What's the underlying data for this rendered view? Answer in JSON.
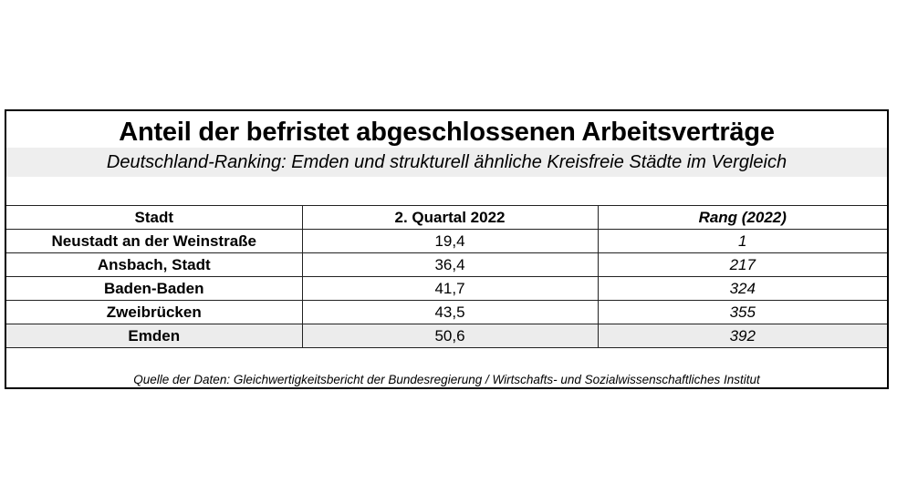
{
  "title": "Anteil der befristet abgeschlossenen Arbeitsverträge",
  "subtitle": "Deutschland-Ranking: Emden und strukturell ähnliche Kreisfreie Städte im Vergleich",
  "table": {
    "headers": [
      "Stadt",
      "2. Quartal 2022",
      "Rang (2022)"
    ],
    "rows": [
      [
        "Neustadt an der Weinstraße",
        "19,4",
        "1"
      ],
      [
        "Ansbach, Stadt",
        "36,4",
        "217"
      ],
      [
        "Baden-Baden",
        "41,7",
        "324"
      ],
      [
        "Zweibrücken",
        "43,5",
        "355"
      ],
      [
        "Emden",
        "50,6",
        "392"
      ]
    ]
  },
  "source": "Quelle der Daten: Gleichwertigkeitsbericht der Bundesregierung / Wirtschafts- und Sozialwissenschaftliches Institut"
}
